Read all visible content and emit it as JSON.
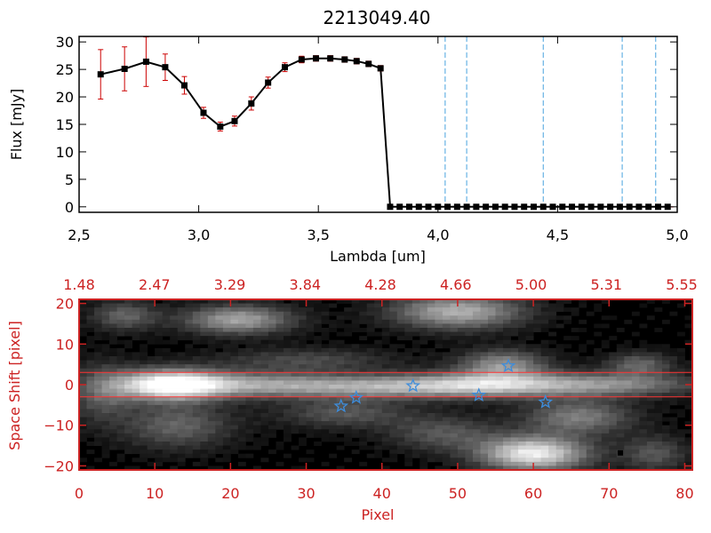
{
  "chart_data": [
    {
      "type": "line",
      "title": "2213049.40",
      "xlabel": "Lambda [um]",
      "ylabel": "Flux [mJy]",
      "xlim": [
        2.5,
        5.0
      ],
      "ylim": [
        -1,
        31
      ],
      "x_ticks": [
        2.5,
        3.0,
        3.5,
        4.0,
        4.5,
        5.0
      ],
      "x_tick_labels": [
        "2,5",
        "3,0",
        "3,5",
        "4,0",
        "4,5",
        "5,0"
      ],
      "y_ticks": [
        0,
        5,
        10,
        15,
        20,
        25,
        30
      ],
      "y_tick_labels": [
        "0",
        "5",
        "10",
        "15",
        "20",
        "25",
        "30"
      ],
      "series": [
        {
          "color": "#000000",
          "error_color": "#cc0000",
          "x": [
            2.59,
            2.69,
            2.78,
            2.86,
            2.94,
            3.02,
            3.09,
            3.15,
            3.22,
            3.29,
            3.36,
            3.43,
            3.49,
            3.55,
            3.61,
            3.66,
            3.71,
            3.76,
            3.8,
            3.84,
            3.88,
            3.92,
            3.96,
            4.0,
            4.04,
            4.08,
            4.12,
            4.16,
            4.2,
            4.24,
            4.28,
            4.32,
            4.36,
            4.4,
            4.44,
            4.48,
            4.52,
            4.56,
            4.6,
            4.64,
            4.68,
            4.72,
            4.76,
            4.8,
            4.84,
            4.88,
            4.92,
            4.96
          ],
          "y": [
            24.1,
            25.1,
            26.4,
            25.4,
            22.1,
            17.1,
            14.6,
            15.6,
            18.8,
            22.6,
            25.4,
            26.8,
            27.0,
            27.0,
            26.8,
            26.5,
            26.0,
            25.2,
            0,
            0,
            0,
            0,
            0,
            0,
            0,
            0,
            0,
            0,
            0,
            0,
            0,
            0,
            0,
            0,
            0,
            0,
            0,
            0,
            0,
            0,
            0,
            0,
            0,
            0,
            0,
            0,
            0,
            0
          ],
          "errors": [
            4.5,
            4.0,
            4.5,
            2.4,
            1.6,
            1.0,
            0.8,
            0.9,
            1.2,
            1.0,
            0.8,
            0.6,
            0.5,
            0.5,
            0.5,
            0.5,
            0.5,
            0.5,
            0,
            0,
            0,
            0,
            0,
            0,
            0,
            0,
            0,
            0,
            0,
            0,
            0,
            0,
            0,
            0,
            0,
            0,
            0,
            0,
            0,
            0,
            0,
            0,
            0,
            0,
            0,
            0,
            0,
            0
          ]
        }
      ],
      "vertical_lines": {
        "color": "#4aa3df",
        "x": [
          4.03,
          4.12,
          4.44,
          4.77,
          4.91
        ]
      }
    },
    {
      "type": "heatmap",
      "xlabel": "Pixel",
      "ylabel": "Space Shift [pixel]",
      "xlim": [
        0,
        81
      ],
      "ylim": [
        -21,
        21
      ],
      "x_ticks": [
        0,
        10,
        20,
        30,
        40,
        50,
        60,
        70,
        80
      ],
      "x_tick_labels": [
        "0",
        "10",
        "20",
        "30",
        "40",
        "50",
        "60",
        "70",
        "80"
      ],
      "y_ticks": [
        -20,
        -10,
        0,
        10,
        20
      ],
      "y_tick_labels": [
        "−20",
        "−10",
        "0",
        "10",
        "20"
      ],
      "top_axis_labels": [
        "1.48",
        "2.47",
        "3.29",
        "3.84",
        "4.28",
        "4.66",
        "5.00",
        "5.31",
        "5.55"
      ],
      "axis_color": "#cc2222",
      "trace_lines": {
        "color": "#ff3333",
        "y": [
          3,
          -3
        ]
      },
      "star_markers": {
        "color": "#3d8ddc",
        "points": [
          [
            34.6,
            -5.3
          ],
          [
            36.6,
            -3.2
          ],
          [
            44.1,
            -0.3
          ],
          [
            52.8,
            -2.6
          ],
          [
            56.7,
            4.6
          ],
          [
            61.6,
            -4.3
          ]
        ]
      },
      "blobs": [
        {
          "x": 12,
          "y": 0,
          "sx": 5,
          "sy": 2.6,
          "v": 1.0
        },
        {
          "x": 23,
          "y": 0,
          "sx": 8,
          "sy": 2.2,
          "v": 0.45
        },
        {
          "x": 40,
          "y": -0.5,
          "sx": 10,
          "sy": 2.0,
          "v": 0.55
        },
        {
          "x": 55,
          "y": 0,
          "sx": 8,
          "sy": 2.2,
          "v": 0.6
        },
        {
          "x": 71,
          "y": 0,
          "sx": 8,
          "sy": 2.0,
          "v": 0.45
        },
        {
          "x": 21,
          "y": 16,
          "sx": 5,
          "sy": 2.5,
          "v": 0.6
        },
        {
          "x": 50,
          "y": 18,
          "sx": 6,
          "sy": 3,
          "v": 0.65
        },
        {
          "x": 6,
          "y": 17,
          "sx": 3,
          "sy": 2.5,
          "v": 0.35
        },
        {
          "x": 13,
          "y": -10,
          "sx": 5,
          "sy": 4,
          "v": 0.35
        },
        {
          "x": 48,
          "y": -12,
          "sx": 5,
          "sy": 3,
          "v": 0.3
        },
        {
          "x": 60,
          "y": -17,
          "sx": 5,
          "sy": 3,
          "v": 0.9
        },
        {
          "x": 66,
          "y": -8,
          "sx": 5,
          "sy": 3,
          "v": 0.45
        },
        {
          "x": 56,
          "y": 5,
          "sx": 4,
          "sy": 2.5,
          "v": 0.5
        },
        {
          "x": 74,
          "y": 5,
          "sx": 3,
          "sy": 2,
          "v": 0.35
        },
        {
          "x": 30,
          "y": 6,
          "sx": 8,
          "sy": 2,
          "v": 0.25
        },
        {
          "x": 35,
          "y": -7,
          "sx": 6,
          "sy": 2.5,
          "v": 0.3
        },
        {
          "x": 76,
          "y": -17,
          "sx": 3,
          "sy": 3,
          "v": 0.3
        },
        {
          "x": 3,
          "y": -2,
          "sx": 3,
          "sy": 5,
          "v": 0.3
        }
      ]
    }
  ]
}
